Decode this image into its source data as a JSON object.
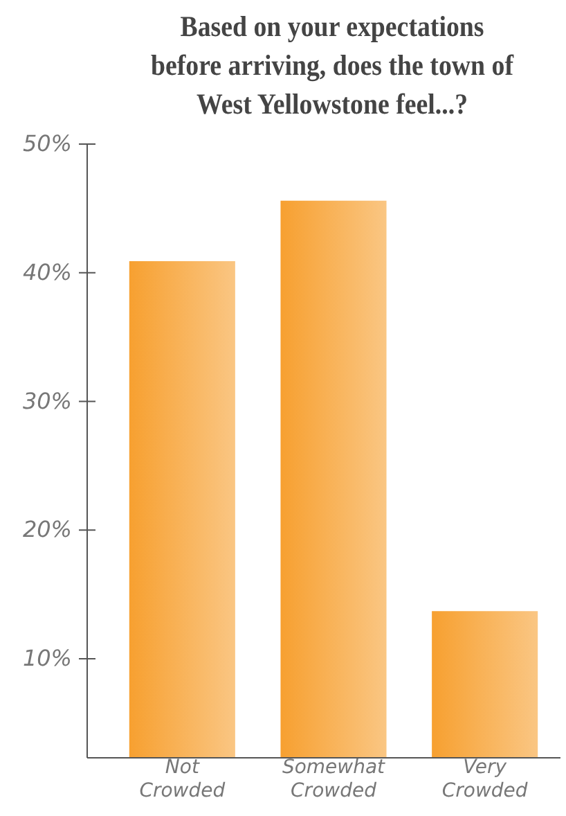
{
  "chart_data": {
    "type": "bar",
    "title": "Based on your expectations before arriving, does the town of West Yellowstone feel...?",
    "categories": [
      "Not Crowded",
      "Somewhat Crowded",
      "Very Crowded"
    ],
    "values": [
      40.9,
      45.6,
      13.7
    ],
    "color": "#f7a030",
    "ylim": [
      2.3,
      50
    ],
    "yticks": [
      {
        "value": 10,
        "label": "10%"
      },
      {
        "value": 20,
        "label": "20%"
      },
      {
        "value": 30,
        "label": "30%"
      },
      {
        "value": 40,
        "label": "40%"
      },
      {
        "value": 50,
        "label": "50%"
      }
    ],
    "grid": false
  }
}
